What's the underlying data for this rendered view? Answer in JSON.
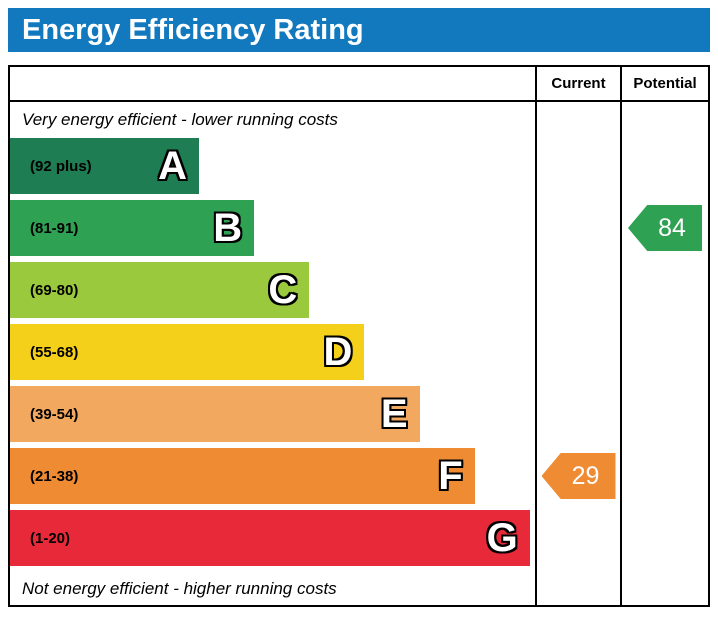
{
  "title": "Energy Efficiency Rating",
  "header": {
    "current": "Current",
    "potential": "Potential"
  },
  "notes": {
    "top": "Very energy efficient - lower running costs",
    "bottom": "Not energy efficient - higher running costs"
  },
  "colors": {
    "title_bar": "#1279be",
    "border": "#000000"
  },
  "chart_data": {
    "type": "bar",
    "title": "Energy Efficiency Rating",
    "categories": [
      "A",
      "B",
      "C",
      "D",
      "E",
      "F",
      "G"
    ],
    "bands": [
      {
        "letter": "A",
        "range": "(92 plus)",
        "color": "#1e7d52",
        "width_pct": 36
      },
      {
        "letter": "B",
        "range": "(81-91)",
        "color": "#2ea152",
        "width_pct": 46.5
      },
      {
        "letter": "C",
        "range": "(69-80)",
        "color": "#9bc93d",
        "width_pct": 57
      },
      {
        "letter": "D",
        "range": "(55-68)",
        "color": "#f4d01a",
        "width_pct": 67.5
      },
      {
        "letter": "E",
        "range": "(39-54)",
        "color": "#f3a860",
        "width_pct": 78
      },
      {
        "letter": "F",
        "range": "(21-38)",
        "color": "#ee8b33",
        "width_pct": 88.5
      },
      {
        "letter": "G",
        "range": "(1-20)",
        "color": "#e8293a",
        "width_pct": 99
      }
    ],
    "current": {
      "value": 29,
      "band": "F",
      "color": "#ee8b33"
    },
    "potential": {
      "value": 84,
      "band": "B",
      "color": "#2ea152"
    }
  }
}
